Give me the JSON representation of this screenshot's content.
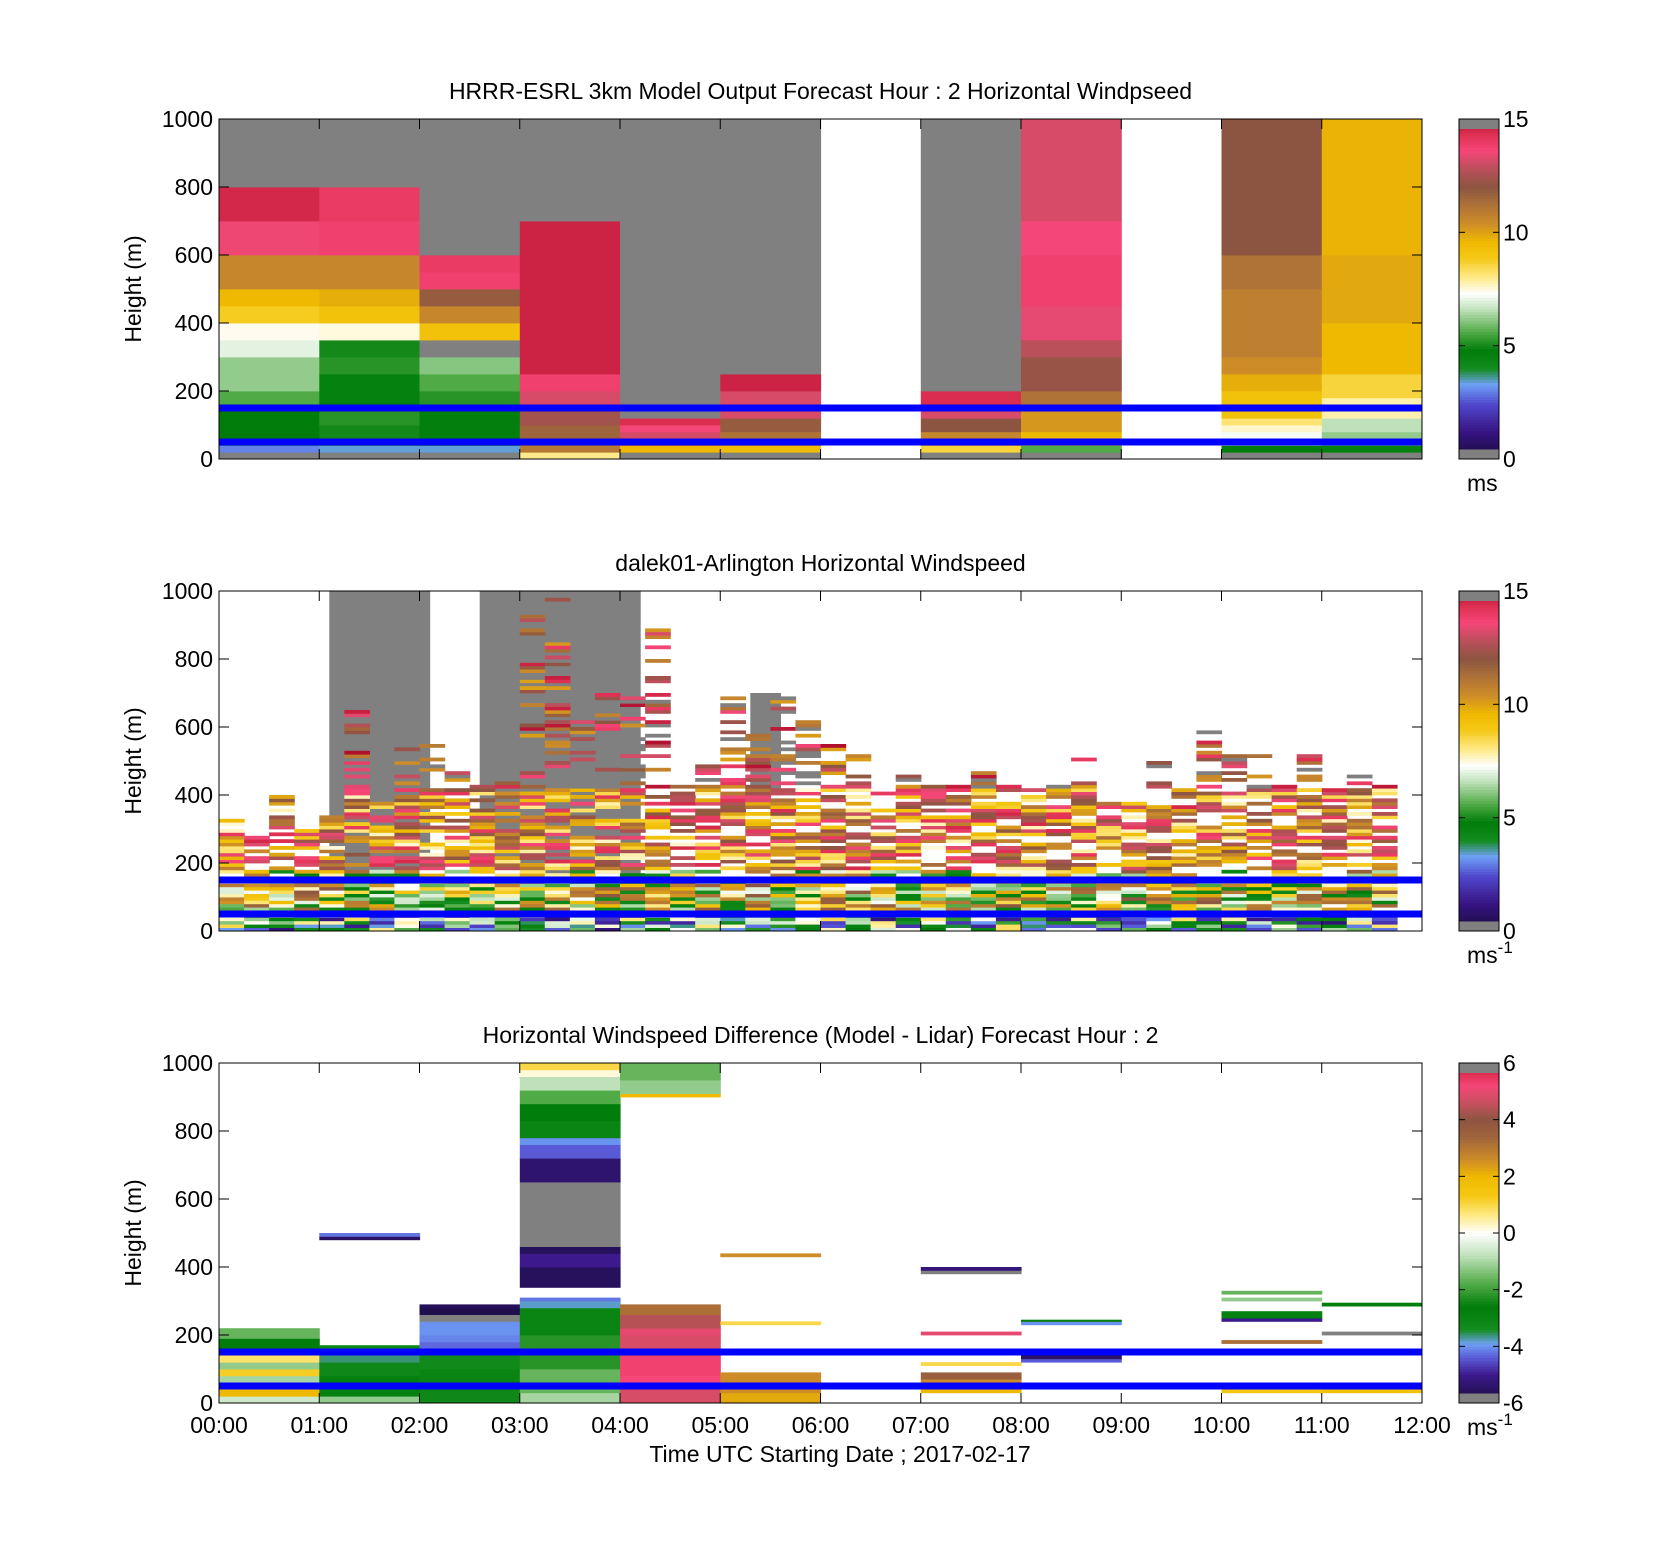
{
  "figure": {
    "xlabel": "Time UTC  Starting Date ; 2017-02-17",
    "x_tick_labels": [
      "00:00",
      "01:00",
      "02:00",
      "03:00",
      "04:00",
      "05:00",
      "06:00",
      "07:00",
      "08:00",
      "09:00",
      "10:00",
      "11:00",
      "12:00"
    ],
    "reference_lines": {
      "color": "#0000ff",
      "heights_m": [
        150,
        50
      ]
    }
  },
  "chart_data": [
    {
      "type": "heatmap",
      "title": "HRRR-ESRL 3km Model Output   Forecast Hour : 2 Horizontal Windpseed",
      "ylabel": "Height (m)",
      "ylim": [
        0,
        1000
      ],
      "y_ticks": [
        0,
        200,
        400,
        600,
        800,
        1000
      ],
      "xlim": [
        0,
        12
      ],
      "colorbar": {
        "min": 0,
        "max": 15,
        "ticks": [
          0,
          5,
          10,
          15
        ],
        "unit": "ms",
        "unit_sup": ""
      },
      "columns": [
        {
          "t": 0,
          "bins": [
            [
              0,
              20,
              -1
            ],
            [
              20,
              40,
              3
            ],
            [
              40,
              60,
              4.5
            ],
            [
              60,
              160,
              4.8
            ],
            [
              160,
              200,
              5.6
            ],
            [
              200,
              300,
              6.2
            ],
            [
              300,
              350,
              7
            ],
            [
              350,
              400,
              7.4
            ],
            [
              400,
              450,
              8.8
            ],
            [
              450,
              500,
              9.6
            ],
            [
              500,
              600,
              10.6
            ],
            [
              600,
              700,
              13.5
            ],
            [
              700,
              800,
              14.5
            ]
          ]
        },
        {
          "t": 1,
          "bins": [
            [
              0,
              20,
              -1
            ],
            [
              20,
              40,
              3.4
            ],
            [
              40,
              100,
              5
            ],
            [
              100,
              150,
              5.2
            ],
            [
              150,
              250,
              4.6
            ],
            [
              250,
              300,
              5.2
            ],
            [
              300,
              350,
              5
            ],
            [
              350,
              400,
              7.5
            ],
            [
              400,
              450,
              9.2
            ],
            [
              450,
              500,
              9.8
            ],
            [
              500,
              600,
              10.6
            ],
            [
              600,
              700,
              13.8
            ],
            [
              700,
              800,
              14
            ]
          ]
        },
        {
          "t": 2,
          "bins": [
            [
              0,
              20,
              -1
            ],
            [
              20,
              40,
              3.4
            ],
            [
              40,
              150,
              4.7
            ],
            [
              150,
              200,
              5.2
            ],
            [
              200,
              250,
              5.6
            ],
            [
              250,
              300,
              6.1
            ],
            [
              300,
              350,
              -1
            ],
            [
              350,
              400,
              9.2
            ],
            [
              400,
              450,
              10.6
            ],
            [
              450,
              500,
              11.8
            ],
            [
              500,
              550,
              13.8
            ],
            [
              550,
              600,
              14
            ]
          ]
        },
        {
          "t": 3,
          "bins": [
            [
              0,
              20,
              8
            ],
            [
              20,
              50,
              11
            ],
            [
              50,
              100,
              11.6
            ],
            [
              100,
              150,
              12.4
            ],
            [
              150,
              200,
              13.2
            ],
            [
              200,
              250,
              13.8
            ],
            [
              250,
              700,
              14.6
            ]
          ]
        },
        {
          "t": 4,
          "bins": [
            [
              0,
              20,
              -1
            ],
            [
              20,
              40,
              9.6
            ],
            [
              40,
              80,
              13.2
            ],
            [
              80,
              100,
              13.6
            ],
            [
              100,
              120,
              14.4
            ]
          ]
        },
        {
          "t": 5,
          "bins": [
            [
              0,
              20,
              -1
            ],
            [
              20,
              40,
              9.4
            ],
            [
              40,
              80,
              11.2
            ],
            [
              80,
              120,
              11.8
            ],
            [
              120,
              200,
              13.2
            ],
            [
              200,
              250,
              14.6
            ]
          ]
        },
        {
          "t": 7,
          "bins": [
            [
              0,
              20,
              -1
            ],
            [
              20,
              40,
              8.6
            ],
            [
              40,
              80,
              10.6
            ],
            [
              80,
              120,
              12
            ],
            [
              120,
              150,
              13.2
            ],
            [
              150,
              200,
              14.4
            ]
          ]
        },
        {
          "t": 8,
          "bins": [
            [
              0,
              20,
              -1
            ],
            [
              20,
              40,
              5.6
            ],
            [
              40,
              80,
              9.6
            ],
            [
              80,
              150,
              10.2
            ],
            [
              150,
              200,
              11.2
            ],
            [
              200,
              300,
              12.2
            ],
            [
              300,
              350,
              12.8
            ],
            [
              350,
              450,
              13.4
            ],
            [
              450,
              600,
              13.8
            ],
            [
              600,
              700,
              13.6
            ],
            [
              700,
              1000,
              13.2
            ]
          ]
        },
        {
          "t": 10,
          "bins": [
            [
              0,
              20,
              -1
            ],
            [
              20,
              40,
              4.8
            ],
            [
              40,
              80,
              7.2
            ],
            [
              80,
              100,
              7.6
            ],
            [
              100,
              120,
              8.2
            ],
            [
              120,
              200,
              9.2
            ],
            [
              200,
              250,
              9.8
            ],
            [
              250,
              300,
              10.4
            ],
            [
              300,
              500,
              10.8
            ],
            [
              500,
              600,
              11.2
            ],
            [
              600,
              1000,
              12
            ]
          ]
        },
        {
          "t": 11,
          "bins": [
            [
              0,
              20,
              -1
            ],
            [
              20,
              40,
              4.6
            ],
            [
              40,
              80,
              6.2
            ],
            [
              80,
              120,
              6.6
            ],
            [
              120,
              180,
              7.8
            ],
            [
              180,
              250,
              8.6
            ],
            [
              250,
              400,
              9.6
            ],
            [
              400,
              600,
              9.9
            ],
            [
              600,
              1000,
              9.7
            ]
          ]
        }
      ],
      "fill_above_value": -1,
      "fill_above_columns": [
        0,
        1,
        2,
        3,
        4,
        5,
        7
      ]
    },
    {
      "type": "heatmap",
      "title": "dalek01-Arlington  Horizontal Windspeed",
      "ylabel": "Height (m)",
      "ylim": [
        0,
        1000
      ],
      "y_ticks": [
        0,
        200,
        400,
        600,
        800,
        1000
      ],
      "xlim": [
        0,
        12
      ],
      "colorbar": {
        "min": 0,
        "max": 15,
        "ticks": [
          0,
          5,
          10,
          15
        ],
        "unit": "ms",
        "unit_sup": "-1"
      },
      "profile_step_hours": 0.25,
      "bin_m": 10,
      "profile_tops_m": [
        330,
        280,
        400,
        320,
        360,
        650,
        380,
        550,
        560,
        470,
        460,
        480,
        980,
        990,
        620,
        700,
        700,
        920,
        430,
        550,
        690,
        580,
        700,
        620,
        560,
        520,
        420,
        470,
        470,
        430,
        470,
        460,
        430,
        460,
        510,
        380,
        380,
        500,
        420,
        600,
        560,
        520,
        440,
        520,
        460,
        460,
        480
      ],
      "gray_blocks": [
        {
          "t0": 1.1,
          "t1": 2.1,
          "h0": 170,
          "h1": 1000
        },
        {
          "t0": 2.6,
          "t1": 4.2,
          "h0": 170,
          "h1": 1000
        },
        {
          "t0": 5.3,
          "t1": 5.6,
          "h0": 400,
          "h1": 700
        }
      ]
    },
    {
      "type": "heatmap",
      "title": "Horizontal Windspeed Difference (Model - Lidar) Forecast Hour : 2",
      "ylabel": "Height (m)",
      "ylim": [
        0,
        1000
      ],
      "y_ticks": [
        0,
        200,
        400,
        600,
        800,
        1000
      ],
      "xlim": [
        0,
        12
      ],
      "colorbar": {
        "min": -6,
        "max": 6,
        "ticks": [
          -6,
          -4,
          -2,
          0,
          2,
          4,
          6
        ],
        "unit": "ms",
        "unit_sup": "-1"
      },
      "columns": [
        {
          "t": 0,
          "bins": [
            [
              0,
              20,
              -0.6
            ],
            [
              20,
              40,
              2
            ],
            [
              40,
              60,
              1.5
            ],
            [
              60,
              80,
              -1
            ],
            [
              80,
              100,
              1.2
            ],
            [
              100,
              120,
              -1.2
            ],
            [
              120,
              160,
              0.8
            ],
            [
              160,
              190,
              -2.6
            ],
            [
              190,
              220,
              -1.6
            ]
          ]
        },
        {
          "t": 1,
          "bins": [
            [
              0,
              20,
              -1.2
            ],
            [
              20,
              80,
              -2.8
            ],
            [
              80,
              120,
              -3.2
            ],
            [
              120,
              160,
              -3.6
            ],
            [
              160,
              170,
              -3.2
            ],
            [
              480,
              490,
              -5.5
            ],
            [
              490,
              500,
              -4.2
            ]
          ]
        },
        {
          "t": 2,
          "bins": [
            [
              0,
              40,
              -3.2
            ],
            [
              40,
              100,
              -3
            ],
            [
              100,
              150,
              -3.3
            ],
            [
              150,
              180,
              -4.3
            ],
            [
              180,
              200,
              -4.1
            ],
            [
              200,
              240,
              -4
            ],
            [
              240,
              260,
              -7
            ],
            [
              260,
              280,
              -5.8
            ],
            [
              280,
              290,
              -5.6
            ]
          ]
        },
        {
          "t": 3,
          "bins": [
            [
              0,
              30,
              -1
            ],
            [
              30,
              100,
              -1.6
            ],
            [
              100,
              200,
              -2.2
            ],
            [
              200,
              280,
              -3
            ],
            [
              280,
              300,
              -3.8
            ],
            [
              300,
              310,
              -4.2
            ],
            [
              340,
              400,
              -5.6
            ],
            [
              400,
              440,
              -5
            ],
            [
              440,
              460,
              -5.6
            ],
            [
              460,
              650,
              -7
            ],
            [
              650,
              720,
              -5.4
            ],
            [
              720,
              760,
              -4.4
            ],
            [
              760,
              780,
              -4
            ],
            [
              780,
              830,
              -3
            ],
            [
              830,
              880,
              -2.6
            ],
            [
              880,
              920,
              -1.8
            ],
            [
              920,
              960,
              -0.8
            ],
            [
              960,
              980,
              0.2
            ],
            [
              980,
              1000,
              1
            ]
          ]
        },
        {
          "t": 4,
          "bins": [
            [
              0,
              50,
              4.8
            ],
            [
              50,
              80,
              5.2
            ],
            [
              80,
              150,
              5.3
            ],
            [
              150,
              200,
              4.8
            ],
            [
              200,
              220,
              5
            ],
            [
              220,
              260,
              4.4
            ],
            [
              260,
              290,
              3.2
            ],
            [
              900,
              910,
              2
            ],
            [
              910,
              950,
              -1.2
            ],
            [
              950,
              1000,
              -1.6
            ]
          ]
        },
        {
          "t": 5,
          "bins": [
            [
              0,
              30,
              2.2
            ],
            [
              30,
              90,
              2.6
            ],
            [
              230,
              240,
              1
            ],
            [
              430,
              440,
              2.6
            ]
          ]
        },
        {
          "t": 7,
          "bins": [
            [
              30,
              50,
              2
            ],
            [
              50,
              70,
              2.6
            ],
            [
              70,
              90,
              3.6
            ],
            [
              110,
              120,
              1
            ],
            [
              200,
              210,
              5
            ],
            [
              380,
              390,
              -7
            ],
            [
              390,
              400,
              -5.2
            ]
          ]
        },
        {
          "t": 8,
          "bins": [
            [
              120,
              130,
              -4.4
            ],
            [
              130,
              140,
              -5.5
            ],
            [
              230,
              240,
              -4
            ],
            [
              240,
              245,
              -2.6
            ]
          ]
        },
        {
          "t": 10,
          "bins": [
            [
              30,
              40,
              1.4
            ],
            [
              175,
              185,
              3.2
            ],
            [
              240,
              250,
              -5
            ],
            [
              250,
              270,
              -2.8
            ],
            [
              300,
              310,
              -1.2
            ],
            [
              320,
              330,
              -1.6
            ]
          ]
        },
        {
          "t": 11,
          "bins": [
            [
              30,
              40,
              1.6
            ],
            [
              200,
              210,
              -7
            ],
            [
              285,
              295,
              -2.6
            ]
          ]
        }
      ]
    }
  ]
}
